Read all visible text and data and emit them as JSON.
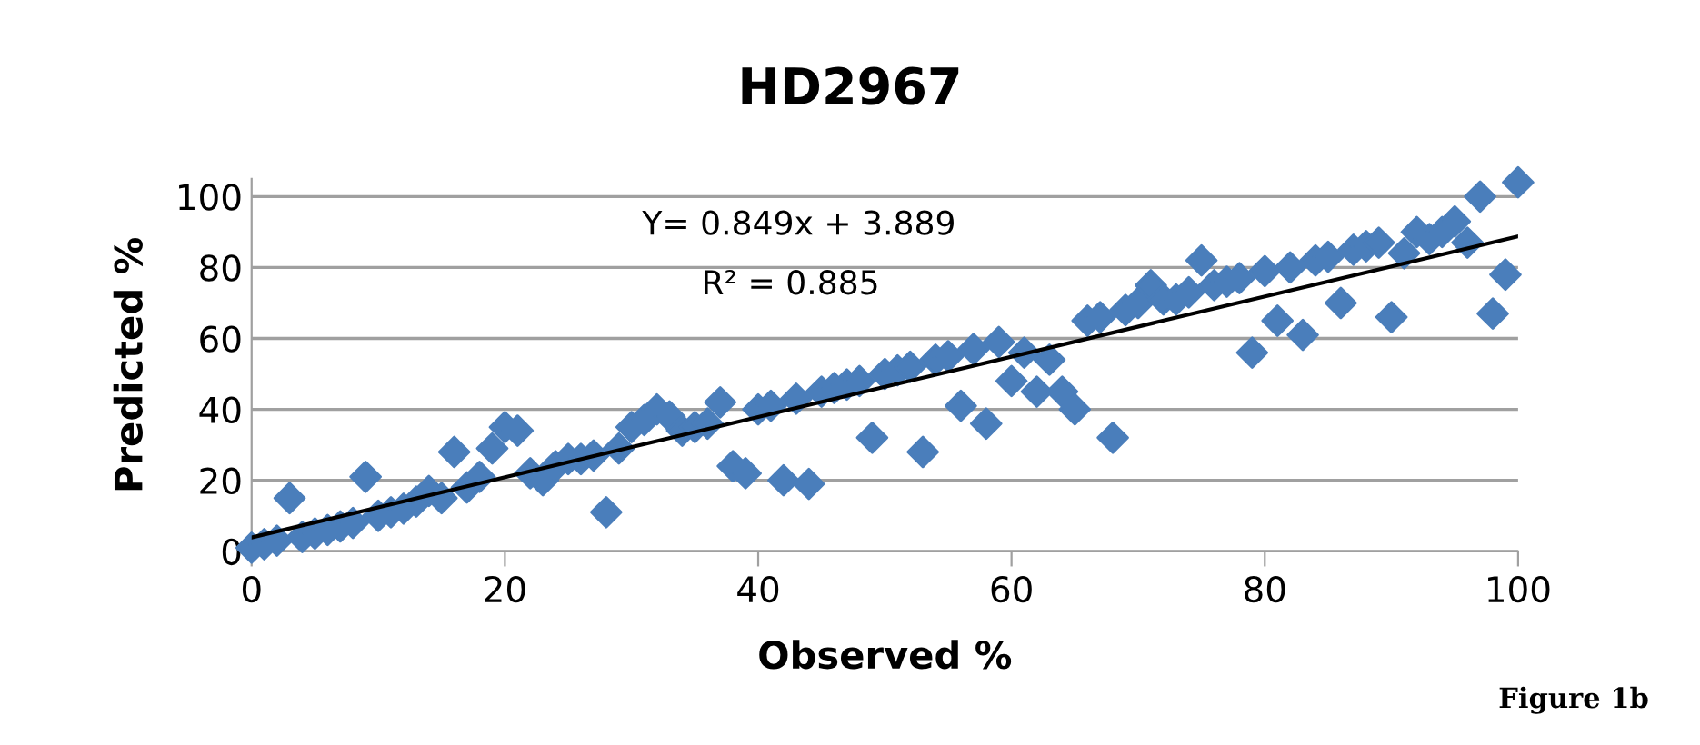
{
  "chart_data": {
    "type": "scatter",
    "title": "HD2967",
    "xlabel": "Observed %",
    "ylabel": "Predicted %",
    "annotations": [
      "Y= 0.849x + 3.889",
      "R² = 0.885",
      "Figure 1b"
    ],
    "xlim": [
      0,
      100
    ],
    "xticks": [
      0,
      20,
      40,
      60,
      80,
      100
    ],
    "ylim": [
      0,
      105
    ],
    "yticks": [
      0,
      20,
      40,
      60,
      80,
      100
    ],
    "grid": "y",
    "marker": "diamond",
    "legend": false,
    "series": [
      {
        "color": "#4a7ebb",
        "x": [
          0,
          1,
          2,
          3,
          4,
          5,
          6,
          7,
          8,
          9,
          10,
          11,
          12,
          13,
          14,
          15,
          16,
          17,
          18,
          19,
          20,
          21,
          22,
          23,
          24,
          25,
          26,
          27,
          28,
          29,
          30,
          31,
          32,
          33,
          34,
          35,
          36,
          37,
          38,
          39,
          40,
          41,
          42,
          43,
          44,
          45,
          46,
          47,
          48,
          49,
          50,
          51,
          52,
          53,
          54,
          55,
          56,
          57,
          58,
          59,
          60,
          61,
          62,
          63,
          64,
          65,
          66,
          67,
          68,
          69,
          70,
          71,
          72,
          73,
          74,
          75,
          76,
          77,
          78,
          79,
          80,
          81,
          82,
          83,
          84,
          85,
          86,
          87,
          88,
          89,
          90,
          91,
          92,
          93,
          94,
          95,
          96,
          97,
          98,
          99,
          100
        ],
        "values": [
          1,
          2,
          3,
          15,
          4,
          5,
          6,
          7,
          8,
          21,
          10,
          11,
          12,
          14,
          17,
          15,
          28,
          18,
          21,
          29,
          35,
          34,
          22,
          20,
          24,
          26,
          26,
          27,
          11,
          29,
          35,
          37,
          40,
          38,
          34,
          35,
          36,
          42,
          24,
          22,
          40,
          41,
          20,
          43,
          19,
          45,
          46,
          47,
          48,
          32,
          50,
          51,
          52,
          28,
          54,
          55,
          41,
          57,
          36,
          59,
          48,
          56,
          45,
          54,
          45,
          40,
          65,
          66,
          32,
          68,
          70,
          75,
          71,
          71,
          73,
          82,
          75,
          76,
          77,
          56,
          79,
          65,
          80,
          61,
          82,
          83,
          70,
          85,
          86,
          87,
          66,
          84,
          90,
          88,
          90,
          93,
          87,
          100,
          67,
          78,
          104
        ]
      },
      {
        "type": "line",
        "color": "#000000",
        "marker": "none",
        "x": [
          0,
          100
        ],
        "values": [
          3.9,
          88.8
        ]
      }
    ]
  }
}
